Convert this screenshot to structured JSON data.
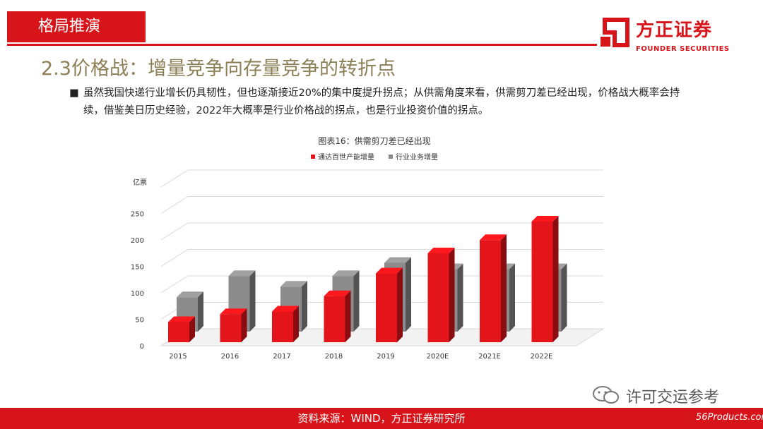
{
  "section": {
    "label": "格局推演"
  },
  "logo": {
    "name_cn": "方正证券",
    "name_en": "FOUNDER SECURITIES"
  },
  "slide": {
    "title": "2.3价格战：增量竞争向存量竞争的转折点",
    "bullet": "虽然我国快递行业增长仍具韧性，但也逐渐接近20%的集中度提升拐点；从供需角度来看，供需剪刀差已经出现，价格战大概率会持续，借鉴美日历史经验，2022年大概率是行业价格战的拐点，也是行业投资价值的拐点。"
  },
  "chart_data": {
    "type": "bar",
    "title": "图表16：供需剪刀差已经出现",
    "ylabel": "亿票",
    "categories": [
      "2015",
      "2016",
      "2017",
      "2018",
      "2019",
      "2020E",
      "2021E",
      "2022E"
    ],
    "series": [
      {
        "name": "通达百世产能增量",
        "color": "#e3141a",
        "values": [
          38,
          53,
          58,
          87,
          130,
          168,
          193,
          228
        ]
      },
      {
        "name": "行业业务增量",
        "color": "#8c8c8c",
        "values": [
          65,
          105,
          85,
          105,
          130,
          118,
          118,
          118
        ]
      }
    ],
    "yticks": [
      "0",
      "50",
      "100",
      "150",
      "200",
      "250"
    ],
    "ylim": [
      0,
      300
    ],
    "legend": "top",
    "grid": true
  },
  "footer": {
    "source": "资料来源：WIND，方正证券研究所"
  },
  "wechat": {
    "name": "许可交运参考"
  },
  "watermark": {
    "text": "56Products.com"
  }
}
